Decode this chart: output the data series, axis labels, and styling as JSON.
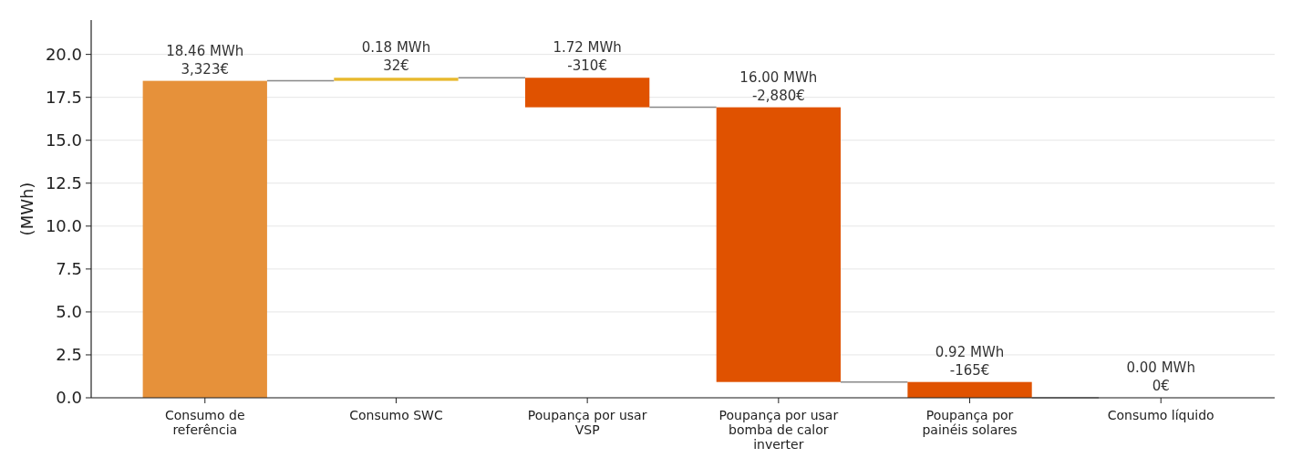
{
  "chart_data": {
    "type": "bar",
    "ylabel": "(MWh)",
    "categories": [
      "Consumo de referência",
      "Consumo SWC",
      "Poupança por usar VSP",
      "Poupança por usar bomba de calor inverter",
      "Poupança por painéis solares",
      "Consumo líquido"
    ],
    "values": [
      18.46,
      0.18,
      1.72,
      16.0,
      0.92,
      0.0
    ],
    "base": [
      0,
      18.46,
      16.92,
      0.92,
      0,
      null
    ],
    "colors": [
      "#e6913a",
      "#e8b92e",
      "#e05200",
      "#e05200",
      "#e05200",
      "#e05200"
    ],
    "value_labels": [
      "18.46 MWh\n3,323€",
      "0.18 MWh\n32€",
      "1.72 MWh\n-310€",
      "16.00 MWh\n-2,880€",
      "0.92 MWh\n-165€",
      "0.00 MWh\n0€"
    ],
    "ylim": [
      0,
      22
    ],
    "yticks": [
      {
        "value": 0,
        "label": "0.0"
      },
      {
        "value": 2.5,
        "label": "2.5"
      },
      {
        "value": 5,
        "label": "5.0"
      },
      {
        "value": 7.5,
        "label": "7.5"
      },
      {
        "value": 10,
        "label": "10.0"
      },
      {
        "value": 12.5,
        "label": "12.5"
      },
      {
        "value": 15,
        "label": "15.0"
      },
      {
        "value": 17.5,
        "label": "17.5"
      },
      {
        "value": 20,
        "label": "20.0"
      }
    ],
    "grid": "y"
  }
}
